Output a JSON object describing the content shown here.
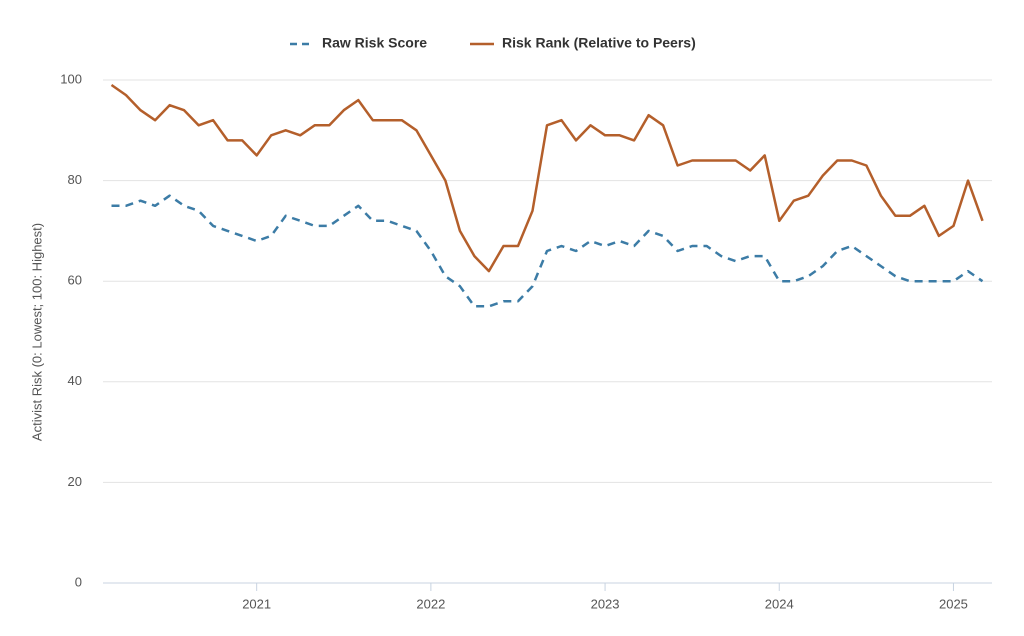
{
  "chart_data": {
    "type": "line",
    "y_label": "Activist Risk (0: Lowest; 100: Highest)",
    "x": [
      "2020-03",
      "2020-04",
      "2020-05",
      "2020-06",
      "2020-07",
      "2020-08",
      "2020-09",
      "2020-10",
      "2020-11",
      "2020-12",
      "2021-01",
      "2021-02",
      "2021-03",
      "2021-04",
      "2021-05",
      "2021-06",
      "2021-07",
      "2021-08",
      "2021-09",
      "2021-10",
      "2021-11",
      "2021-12",
      "2022-01",
      "2022-02",
      "2022-03",
      "2022-04",
      "2022-05",
      "2022-06",
      "2022-07",
      "2022-08",
      "2022-09",
      "2022-10",
      "2022-11",
      "2022-12",
      "2023-01",
      "2023-02",
      "2023-03",
      "2023-04",
      "2023-05",
      "2023-06",
      "2023-07",
      "2023-08",
      "2023-09",
      "2023-10",
      "2023-11",
      "2023-12",
      "2024-01",
      "2024-02",
      "2024-03",
      "2024-04",
      "2024-05",
      "2024-06",
      "2024-07",
      "2024-08",
      "2024-09",
      "2024-10",
      "2024-11",
      "2024-12",
      "2025-01",
      "2025-02",
      "2025-03"
    ],
    "series": [
      {
        "name": "Raw Risk Score",
        "color": "#3c7ca6",
        "dashed": true,
        "values": [
          75,
          75,
          76,
          75,
          77,
          75,
          74,
          71,
          70,
          69,
          68,
          69,
          73,
          72,
          71,
          71,
          73,
          75,
          72,
          72,
          71,
          70,
          66,
          61,
          59,
          55,
          55,
          56,
          56,
          59,
          66,
          67,
          66,
          68,
          67,
          68,
          67,
          70,
          69,
          66,
          67,
          67,
          65,
          64,
          65,
          65,
          60,
          60,
          61,
          63,
          66,
          67,
          65,
          63,
          61,
          60,
          60,
          60,
          60,
          62,
          60
        ]
      },
      {
        "name": "Risk Rank (Relative to Peers)",
        "color": "#b45f2b",
        "dashed": false,
        "values": [
          99,
          97,
          94,
          92,
          95,
          94,
          91,
          92,
          88,
          88,
          85,
          89,
          90,
          89,
          91,
          91,
          94,
          96,
          92,
          92,
          92,
          90,
          85,
          80,
          70,
          65,
          62,
          67,
          67,
          74,
          91,
          92,
          88,
          91,
          89,
          89,
          88,
          93,
          91,
          83,
          84,
          84,
          84,
          84,
          82,
          85,
          72,
          76,
          77,
          81,
          84,
          84,
          83,
          77,
          73,
          73,
          75,
          69,
          71,
          80,
          72
        ]
      }
    ],
    "xlim": [
      "2020-02",
      "2025-04"
    ],
    "xticks": [
      {
        "value": "2021-01",
        "label": "2021"
      },
      {
        "value": "2022-01",
        "label": "2022"
      },
      {
        "value": "2023-01",
        "label": "2023"
      },
      {
        "value": "2024-01",
        "label": "2024"
      },
      {
        "value": "2025-01",
        "label": "2025"
      }
    ],
    "ylim": [
      0,
      100
    ],
    "yticks": [
      0,
      20,
      40,
      60,
      80,
      100
    ],
    "grid": true,
    "legend": "top"
  }
}
